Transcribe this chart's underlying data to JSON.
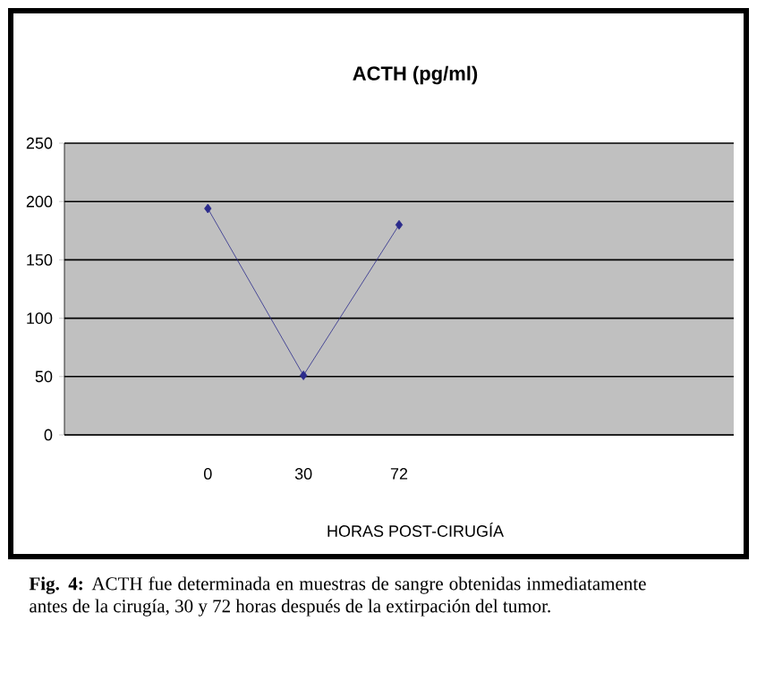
{
  "chart_data": {
    "type": "line",
    "title": "ACTH (pg/ml)",
    "xlabel": "HORAS POST-CIRUGÍA",
    "categories": [
      null,
      "0",
      "30",
      "72",
      null,
      null,
      null
    ],
    "series": [
      {
        "color": "#2b2b8c",
        "values": [
          null,
          194,
          51,
          180,
          null,
          null,
          null
        ]
      }
    ],
    "ylim": [
      0,
      250
    ],
    "yticks": [
      0,
      50,
      100,
      150,
      200,
      250
    ],
    "grid": "y",
    "marker": "diamond",
    "line_style": "solid",
    "annotations": [
      "**Fig. 4:** ACTH fue determinada en muestras de sangre obtenidas inmediatamente antes de la cirugía, 30 y 72 horas después de la extirpación del tumor."
    ]
  }
}
